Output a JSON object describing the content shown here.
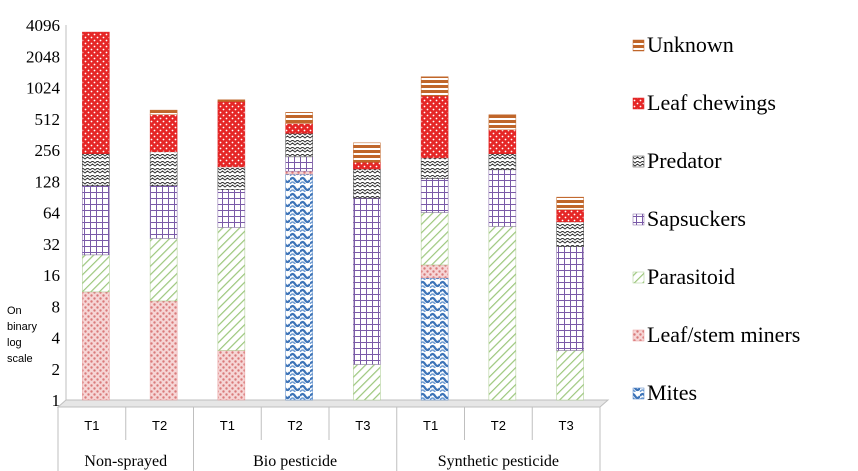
{
  "chart_data": {
    "type": "bar",
    "stacked": true,
    "y_scale": "log2",
    "ylabel": "On binary log scale",
    "ylim": [
      1,
      4096
    ],
    "yticks": [
      1,
      2,
      4,
      8,
      16,
      32,
      64,
      128,
      256,
      512,
      1024,
      2048,
      4096
    ],
    "yticklabels": [
      "1",
      "2",
      "4",
      "8",
      "16",
      "32",
      "64",
      "128",
      "256",
      "512",
      "1024",
      "2048",
      "4096"
    ],
    "categories": [
      "T1",
      "T2",
      "T1",
      "T2",
      "T3",
      "T1",
      "T2",
      "T3"
    ],
    "groups": [
      {
        "label": "Non-sprayed",
        "categories": [
          0,
          1
        ]
      },
      {
        "label": "Bio pesticide",
        "categories": [
          2,
          3,
          4
        ]
      },
      {
        "label": "Synthetic pesticide",
        "categories": [
          5,
          6,
          7
        ]
      }
    ],
    "grid": false,
    "legend_position": "right",
    "series": [
      {
        "name": "Mites",
        "color": "#4a7ec0",
        "pattern": "mites",
        "cum": [
          1,
          1,
          1,
          150,
          1,
          15,
          1,
          1
        ]
      },
      {
        "name": "Leaf/stem miners",
        "color": "#e89a9a",
        "pattern": "miners",
        "cum": [
          11,
          9,
          3,
          160,
          1,
          20,
          1,
          1
        ]
      },
      {
        "name": "Parasitoid",
        "color": "#a6c98a",
        "pattern": "parasitoid",
        "cum": [
          25,
          36,
          46,
          160,
          2.2,
          64,
          47,
          3
        ]
      },
      {
        "name": "Sapsuckers",
        "color": "#8064a2",
        "pattern": "sapsuckers",
        "cum": [
          116,
          116,
          106,
          220,
          88,
          136,
          165,
          30
        ]
      },
      {
        "name": "Predator",
        "color": "#404040",
        "pattern": "predator",
        "cum": [
          236,
          246,
          176,
          370,
          168,
          215,
          236,
          52
        ]
      },
      {
        "name": "Leaf chewings",
        "color": "#e02020",
        "pattern": "chewings",
        "cum": [
          3500,
          560,
          750,
          460,
          195,
          850,
          400,
          68
        ]
      },
      {
        "name": "Unknown",
        "color": "#c0662a",
        "pattern": "unknown",
        "cum": [
          3500,
          620,
          780,
          590,
          300,
          1300,
          560,
          90
        ]
      }
    ]
  }
}
